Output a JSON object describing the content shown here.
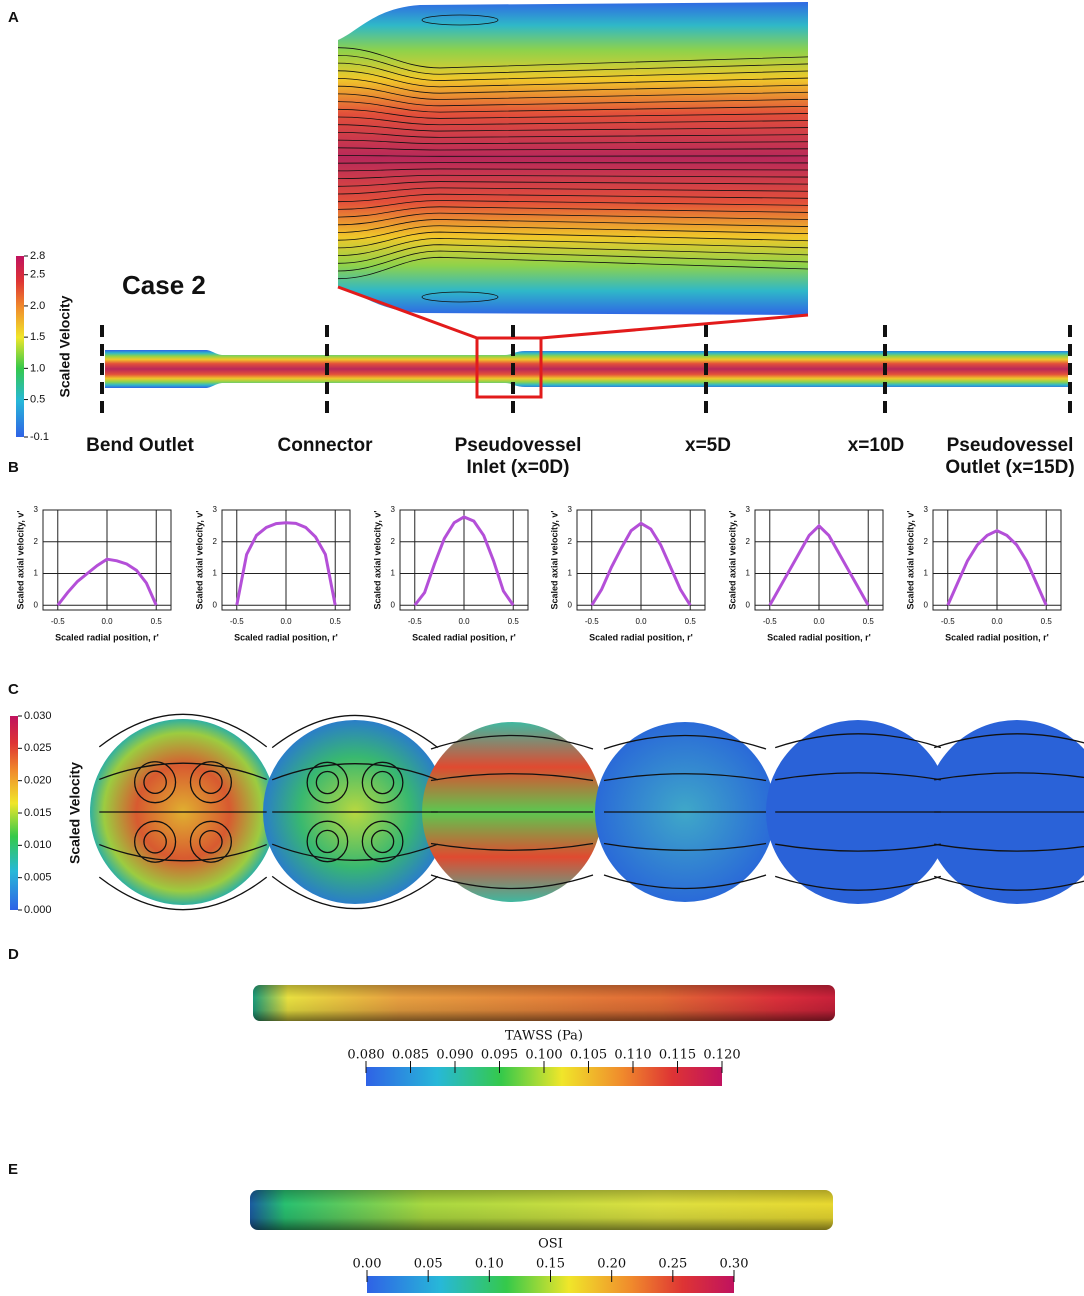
{
  "panel_labels": [
    "A",
    "B",
    "C",
    "D",
    "E"
  ],
  "panel_a": {
    "case": "Case 2",
    "colorbar": {
      "label": "Scaled Velocity",
      "ticks": [
        2.8,
        2.5,
        {
          "value": 2,
          "label": "2.0"
        },
        1.5,
        {
          "value": 1,
          "label": "1.0"
        },
        0.5,
        -0.1
      ]
    },
    "stations": [
      [
        "Bend Outlet"
      ],
      [
        "Connector"
      ],
      [
        "Pseudovessel",
        "Inlet (x=0D)"
      ],
      [
        "x=5D"
      ],
      [
        "x=10D"
      ],
      [
        "Pseudovessel",
        "Outlet (x=15D)"
      ]
    ]
  },
  "chart_data": [
    {
      "type": "line",
      "color": "#b44fd8",
      "grid": true,
      "xlabel": "Scaled radial position, r'",
      "ylabel": "Scaled axial velocity, v'",
      "xlim": [
        -0.65,
        0.65
      ],
      "ylim": [
        -0.15,
        3
      ],
      "xticks": [
        -0.5,
        {
          "value": 0,
          "label": "0.0"
        },
        0.5
      ],
      "yticks": [
        0,
        1,
        2,
        3
      ],
      "x": [
        -0.5,
        -0.4,
        -0.3,
        -0.2,
        -0.1,
        0,
        0.1,
        0.2,
        0.3,
        0.4,
        0.5
      ],
      "values": [
        0,
        0.4,
        0.75,
        1.0,
        1.25,
        1.45,
        1.4,
        1.3,
        1.1,
        0.7,
        0
      ]
    },
    {
      "type": "line",
      "color": "#b44fd8",
      "grid": true,
      "xlabel": "Scaled radial position, r'",
      "ylabel": "Scaled axial velocity, v'",
      "xlim": [
        -0.65,
        0.65
      ],
      "ylim": [
        -0.15,
        3
      ],
      "xticks": [
        -0.5,
        {
          "value": 0,
          "label": "0.0"
        },
        0.5
      ],
      "yticks": [
        0,
        1,
        2,
        3
      ],
      "x": [
        -0.5,
        -0.4,
        -0.3,
        -0.2,
        -0.1,
        0,
        0.1,
        0.2,
        0.3,
        0.4,
        0.5
      ],
      "values": [
        0,
        1.6,
        2.2,
        2.45,
        2.57,
        2.6,
        2.58,
        2.45,
        2.15,
        1.6,
        0
      ]
    },
    {
      "type": "line",
      "color": "#b44fd8",
      "grid": true,
      "xlabel": "Scaled radial position, r'",
      "ylabel": "Scaled axial velocity, v'",
      "xlim": [
        -0.65,
        0.65
      ],
      "ylim": [
        -0.15,
        3
      ],
      "xticks": [
        -0.5,
        {
          "value": 0,
          "label": "0.0"
        },
        0.5
      ],
      "yticks": [
        0,
        1,
        2,
        3
      ],
      "x": [
        -0.5,
        -0.4,
        -0.3,
        -0.2,
        -0.1,
        0,
        0.1,
        0.2,
        0.3,
        0.4,
        0.5
      ],
      "values": [
        0,
        0.4,
        1.3,
        2.1,
        2.6,
        2.78,
        2.65,
        2.2,
        1.4,
        0.45,
        0
      ]
    },
    {
      "type": "line",
      "color": "#b44fd8",
      "grid": true,
      "xlabel": "Scaled radial position, r'",
      "ylabel": "Scaled axial velocity, v'",
      "xlim": [
        -0.65,
        0.65
      ],
      "ylim": [
        -0.15,
        3
      ],
      "xticks": [
        -0.5,
        {
          "value": 0,
          "label": "0.0"
        },
        0.5
      ],
      "yticks": [
        0,
        1,
        2,
        3
      ],
      "x": [
        -0.5,
        -0.4,
        -0.3,
        -0.2,
        -0.1,
        0,
        0.1,
        0.2,
        0.3,
        0.4,
        0.5
      ],
      "values": [
        0,
        0.5,
        1.2,
        1.8,
        2.35,
        2.58,
        2.4,
        1.9,
        1.2,
        0.5,
        0
      ]
    },
    {
      "type": "line",
      "color": "#b44fd8",
      "grid": true,
      "xlabel": "Scaled radial position, r'",
      "ylabel": "Scaled axial velocity, v'",
      "xlim": [
        -0.65,
        0.65
      ],
      "ylim": [
        -0.15,
        3
      ],
      "xticks": [
        -0.5,
        {
          "value": 0,
          "label": "0.0"
        },
        0.5
      ],
      "yticks": [
        0,
        1,
        2,
        3
      ],
      "x": [
        -0.5,
        -0.4,
        -0.3,
        -0.2,
        -0.1,
        0,
        0.1,
        0.2,
        0.3,
        0.4,
        0.5
      ],
      "values": [
        0,
        0.55,
        1.1,
        1.65,
        2.2,
        2.5,
        2.2,
        1.65,
        1.1,
        0.55,
        0
      ]
    },
    {
      "type": "line",
      "color": "#b44fd8",
      "grid": true,
      "xlabel": "Scaled radial position, r'",
      "ylabel": "Scaled axial velocity, v'",
      "xlim": [
        -0.65,
        0.65
      ],
      "ylim": [
        -0.15,
        3
      ],
      "xticks": [
        -0.5,
        {
          "value": 0,
          "label": "0.0"
        },
        0.5
      ],
      "yticks": [
        0,
        1,
        2,
        3
      ],
      "x": [
        -0.5,
        -0.4,
        -0.3,
        -0.2,
        -0.1,
        0,
        0.1,
        0.2,
        0.3,
        0.4,
        0.5
      ],
      "values": [
        0,
        0.7,
        1.4,
        1.9,
        2.2,
        2.35,
        2.2,
        1.9,
        1.4,
        0.7,
        0
      ]
    }
  ],
  "panel_c": {
    "colorbar": {
      "label": "Scaled Velocity",
      "ticks": [
        {
          "value": 0.03,
          "label": "0.030"
        },
        0.025,
        {
          "value": 0.02,
          "label": "0.020"
        },
        0.015,
        {
          "value": 0.01,
          "label": "0.010"
        },
        0.005,
        {
          "value": 0,
          "label": "0.000"
        }
      ]
    }
  },
  "panel_d": {
    "colorbar": {
      "label": "TAWSS (Pa)",
      "ticks": [
        {
          "value": 0.08,
          "label": "0.080"
        },
        0.085,
        {
          "value": 0.09,
          "label": "0.090"
        },
        0.095,
        {
          "value": 0.1,
          "label": "0.100"
        },
        0.105,
        {
          "value": 0.11,
          "label": "0.110"
        },
        0.115,
        {
          "value": 0.12,
          "label": "0.120"
        }
      ]
    }
  },
  "panel_e": {
    "colorbar": {
      "label": "OSI",
      "ticks": [
        {
          "value": 0,
          "label": "0.00"
        },
        0.05,
        {
          "value": 0.1,
          "label": "0.10"
        },
        0.15,
        {
          "value": 0.2,
          "label": "0.20"
        },
        0.25,
        {
          "value": 0.3,
          "label": "0.30"
        }
      ]
    }
  }
}
